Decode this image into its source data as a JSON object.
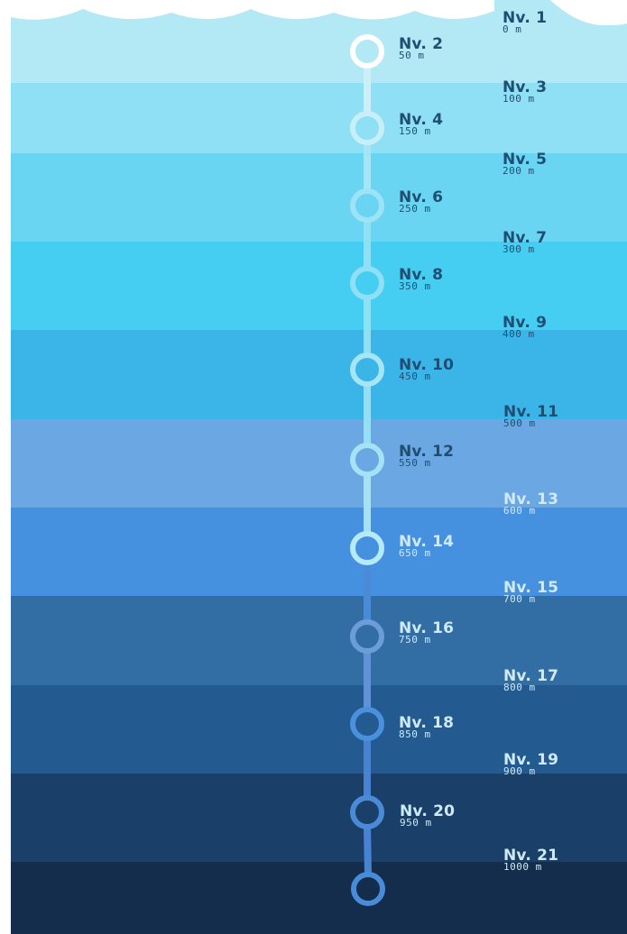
{
  "colors": {
    "bands": [
      "#b3e8f5",
      "#8fe0f5",
      "#6ad5f3",
      "#45cdf2",
      "#3bb5e8",
      "#6aa7e3",
      "#4690e0",
      "#326da3",
      "#235b91",
      "#1a4069",
      "#142d4d"
    ],
    "track_top": "#cdeff8",
    "track_mid": "#94dff6",
    "track_low": "#5f93d6",
    "track_deep": "#4783d0",
    "text_dark": "#1f4e72",
    "text_light": "#cfeaf7"
  },
  "levels": [
    {
      "level": "Nv. 1",
      "depth": "0 m"
    },
    {
      "level": "Nv. 2",
      "depth": "50 m"
    },
    {
      "level": "Nv. 3",
      "depth": "100 m"
    },
    {
      "level": "Nv. 4",
      "depth": "150 m"
    },
    {
      "level": "Nv. 5",
      "depth": "200 m"
    },
    {
      "level": "Nv. 6",
      "depth": "250 m"
    },
    {
      "level": "Nv. 7",
      "depth": "300 m"
    },
    {
      "level": "Nv. 8",
      "depth": "350 m"
    },
    {
      "level": "Nv. 9",
      "depth": "400 m"
    },
    {
      "level": "Nv. 10",
      "depth": "450 m"
    },
    {
      "level": "Nv. 11",
      "depth": "500 m"
    },
    {
      "level": "Nv. 12",
      "depth": "550 m"
    },
    {
      "level": "Nv. 13",
      "depth": "600 m"
    },
    {
      "level": "Nv. 14",
      "depth": "650 m"
    },
    {
      "level": "Nv. 15",
      "depth": "700 m"
    },
    {
      "level": "Nv. 16",
      "depth": "750 m"
    },
    {
      "level": "Nv. 17",
      "depth": "800 m"
    },
    {
      "level": "Nv. 18",
      "depth": "850 m"
    },
    {
      "level": "Nv. 19",
      "depth": "900 m"
    },
    {
      "level": "Nv. 20",
      "depth": "950 m"
    },
    {
      "level": "Nv. 21",
      "depth": "1000 m"
    }
  ]
}
